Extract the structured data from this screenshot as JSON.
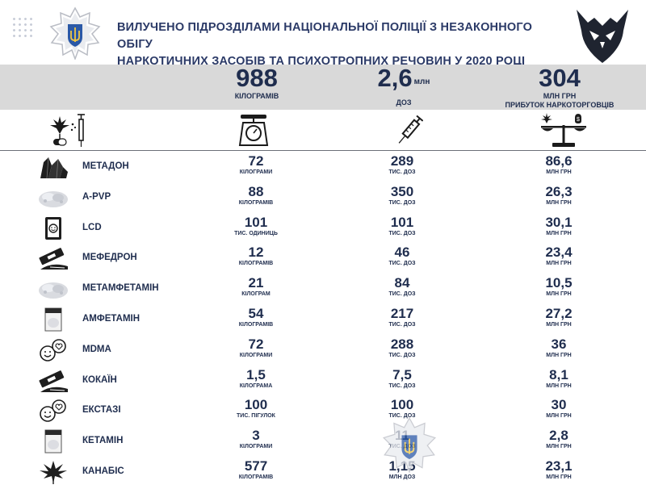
{
  "header": {
    "title_line1": "ВИЛУЧЕНО ПІДРОЗДІЛАМИ НАЦІОНАЛЬНОЇ ПОЛІЦІЇ З НЕЗАКОННОГО ОБІГУ",
    "title_line2": "НАРКОТИЧНИХ ЗАСОБІВ ТА ПСИХОТРОПНИХ РЕЧОВИН У 2020 РОЦІ"
  },
  "totals": {
    "weight": {
      "value": "988",
      "label": "КІЛОГРАМІВ"
    },
    "doses": {
      "value": "2,6",
      "unit": "млн",
      "label": "ДОЗ"
    },
    "profit": {
      "value": "304",
      "label1": "МЛН ГРН",
      "label2": "ПРИБУТОК НАРКОТОРГОВЦІВ"
    }
  },
  "icons": {
    "drugs_header": "drugs-icon",
    "scale_header": "kitchen-scale-icon",
    "syringe_header": "syringe-icon",
    "balance_header": "balance-scale-icon"
  },
  "rows": [
    {
      "name": "МЕТАДОН",
      "icon": "crystals-icon",
      "weight": "72",
      "weight_unit": "кілограми",
      "doses": "289",
      "doses_unit": "тис. доз",
      "profit": "86,6",
      "profit_unit": "млн грн"
    },
    {
      "name": "A-PVP",
      "icon": "powder-icon",
      "weight": "88",
      "weight_unit": "кілограмів",
      "doses": "350",
      "doses_unit": "тис. доз",
      "profit": "26,3",
      "profit_unit": "млн грн"
    },
    {
      "name": "LCD",
      "icon": "blotter-icon",
      "weight": "101",
      "weight_unit": "тис. одиниць",
      "doses": "101",
      "doses_unit": "тис. доз",
      "profit": "30,1",
      "profit_unit": "млн грн"
    },
    {
      "name": "МЕФЕДРОН",
      "icon": "razor-powder-icon",
      "weight": "12",
      "weight_unit": "кілограмів",
      "doses": "46",
      "doses_unit": "тис. доз",
      "profit": "23,4",
      "profit_unit": "млн грн"
    },
    {
      "name": "МЕТАМФЕТАМІН",
      "icon": "powder-icon",
      "weight": "21",
      "weight_unit": "кілограм",
      "doses": "84",
      "doses_unit": "тис. доз",
      "profit": "10,5",
      "profit_unit": "млн грн"
    },
    {
      "name": "АМФЕТАМІН",
      "icon": "bag-icon",
      "weight": "54",
      "weight_unit": "кілограмів",
      "doses": "217",
      "doses_unit": "тис. доз",
      "profit": "27,2",
      "profit_unit": "млн грн"
    },
    {
      "name": "MDMA",
      "icon": "pills-icon",
      "weight": "72",
      "weight_unit": "кілограми",
      "doses": "288",
      "doses_unit": "тис. доз",
      "profit": "36",
      "profit_unit": "млн грн"
    },
    {
      "name": "КОКАЇН",
      "icon": "razor-powder-icon",
      "weight": "1,5",
      "weight_unit": "кілограма",
      "doses": "7,5",
      "doses_unit": "тис. доз",
      "profit": "8,1",
      "profit_unit": "млн грн"
    },
    {
      "name": "ЕКСТАЗІ",
      "icon": "pills-icon",
      "weight": "100",
      "weight_unit": "тис. пігулок",
      "doses": "100",
      "doses_unit": "тис. доз",
      "profit": "30",
      "profit_unit": "млн грн"
    },
    {
      "name": "КЕТАМІН",
      "icon": "bag-icon",
      "weight": "3",
      "weight_unit": "кілограми",
      "doses": "11",
      "doses_unit": "тис. доз",
      "profit": "2,8",
      "profit_unit": "млн грн"
    },
    {
      "name": "КАНАБІС",
      "icon": "cannabis-leaf-icon",
      "weight": "577",
      "weight_unit": "кілограмів",
      "doses": "1,15",
      "doses_unit": "млн доз",
      "profit": "23,1",
      "profit_unit": "млн грн"
    }
  ]
}
